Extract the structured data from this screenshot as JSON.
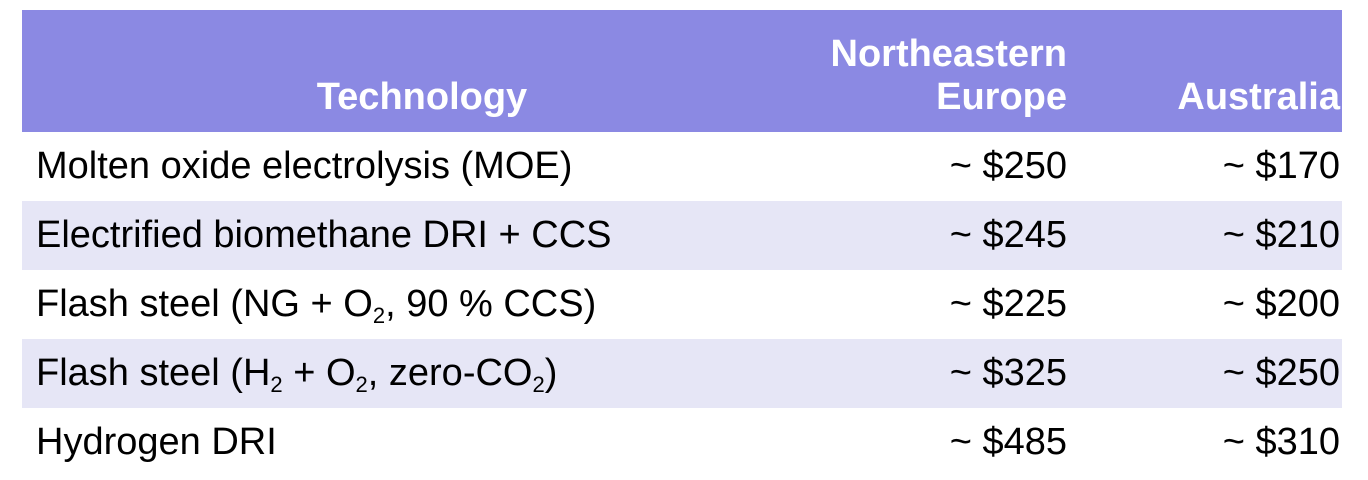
{
  "header": {
    "technology": "Technology",
    "northeastern_europe_line1": "Northeastern",
    "northeastern_europe_line2": "Europe",
    "australia": "Australia"
  },
  "rows": [
    {
      "tech_parts": [
        "Molten oxide electrolysis (MOE)"
      ],
      "northeastern_europe": "~ $250",
      "australia": "~ $170"
    },
    {
      "tech_parts": [
        "Electrified biomethane DRI + CCS"
      ],
      "northeastern_europe": "~ $245",
      "australia": "~ $210"
    },
    {
      "tech_parts": [
        "Flash steel (NG + O",
        "2",
        ", 90 % CCS)"
      ],
      "northeastern_europe": "~ $225",
      "australia": "~ $200"
    },
    {
      "tech_parts": [
        "Flash steel (H",
        "2",
        " + O",
        "2",
        ", zero-CO",
        "2",
        ")"
      ],
      "northeastern_europe": "~ $325",
      "australia": "~ $250"
    },
    {
      "tech_parts": [
        "Hydrogen DRI"
      ],
      "northeastern_europe": "~ $485",
      "australia": "~ $310"
    }
  ]
}
